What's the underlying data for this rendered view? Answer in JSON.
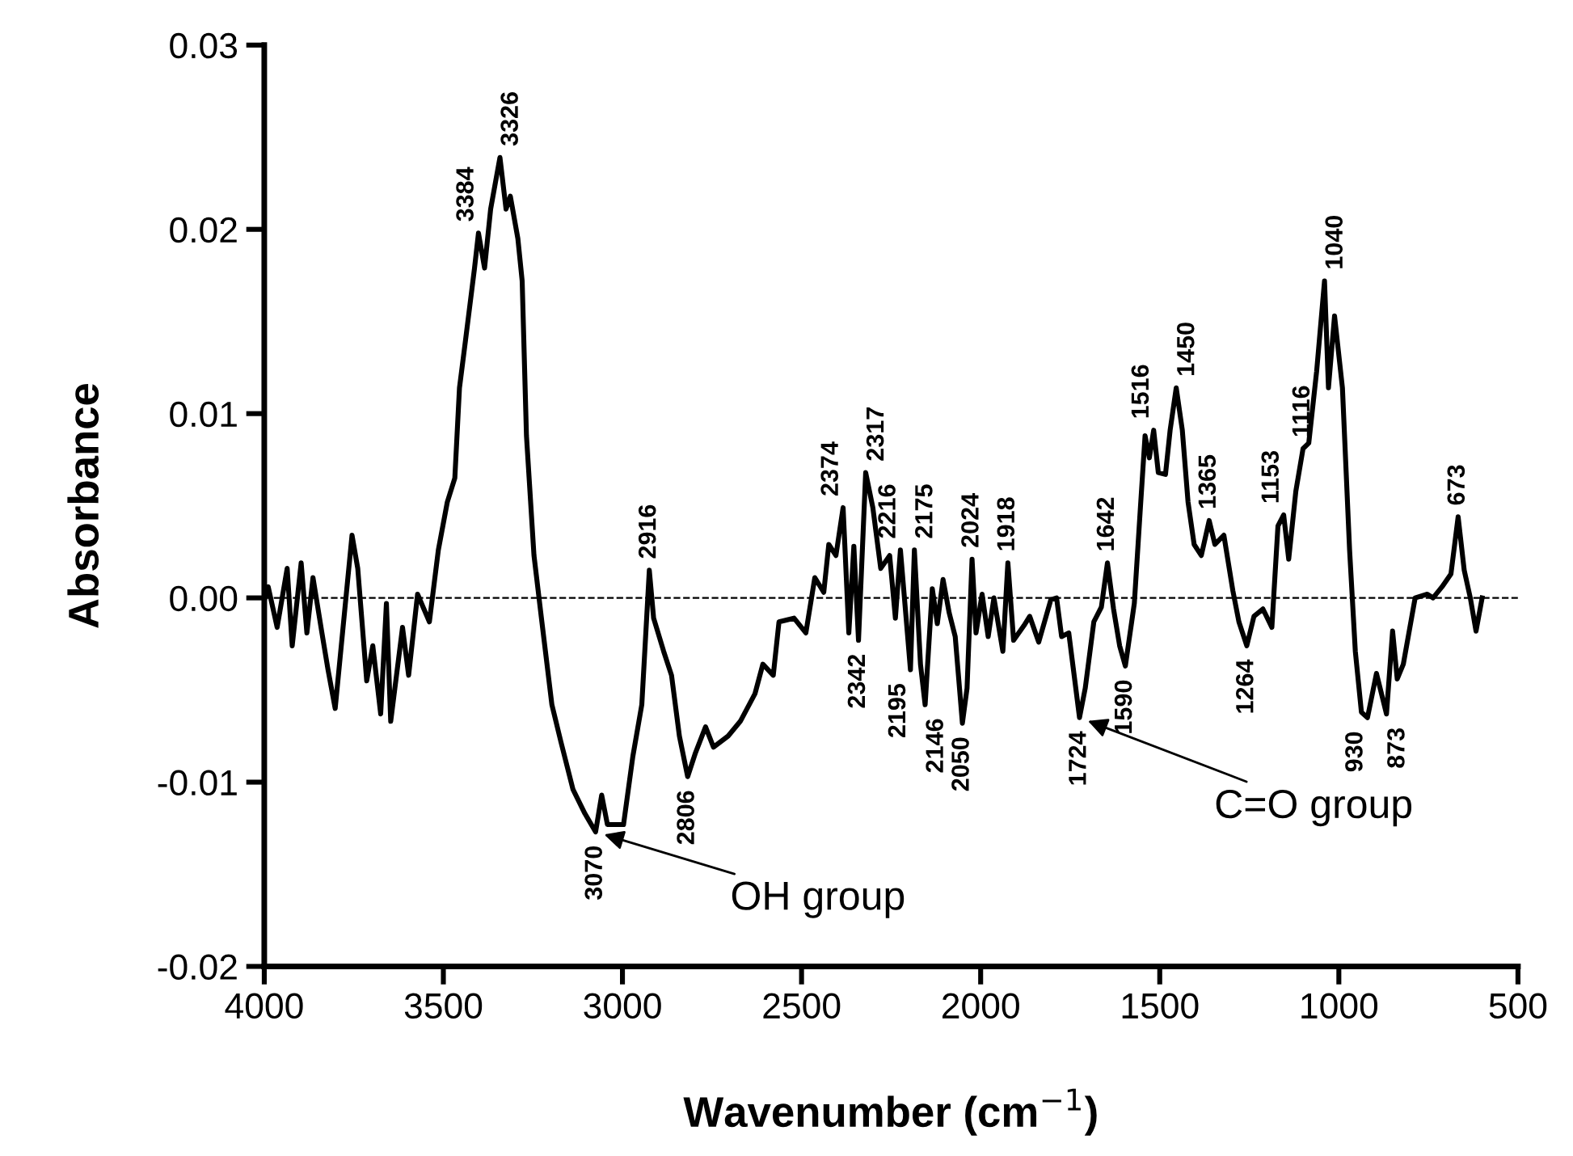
{
  "chart_data": {
    "type": "line",
    "xlabel": "Wavenumber (cm$^{−1}$)",
    "ylabel": "Absorbance",
    "xlim": [
      4000,
      500
    ],
    "xticks": [
      4000,
      3500,
      3000,
      2500,
      2000,
      1500,
      1000,
      500
    ],
    "ylim": [
      -0.02,
      0.03
    ],
    "yticks": [
      {
        "value": -0.02,
        "label": "-0.02"
      },
      {
        "value": -0.01,
        "label": "-0.01"
      },
      {
        "value": 0,
        "label": "0.00"
      },
      {
        "value": 0.01,
        "label": "0.01"
      },
      {
        "value": 0.02,
        "label": "0.02"
      },
      {
        "value": 0.03,
        "label": "0.03"
      }
    ],
    "grid": false,
    "legend": false,
    "marker": "none",
    "line_style": "solid",
    "ref_lines": [
      {
        "axis": "y",
        "value": 0,
        "label": null,
        "color": "#000000",
        "line_style": "dashed"
      }
    ],
    "series": [
      {
        "color": "#000000",
        "x": [
          3998,
          3989,
          3964,
          3936,
          3922,
          3897,
          3881,
          3864,
          3839,
          3822,
          3802,
          3780,
          3755,
          3739,
          3714,
          3697,
          3675,
          3659,
          3647,
          3614,
          3597,
          3572,
          3539,
          3514,
          3489,
          3468,
          3455,
          3438,
          3413,
          3402,
          3385,
          3368,
          3342,
          3325,
          3313,
          3292,
          3280,
          3268,
          3247,
          3225,
          3197,
          3172,
          3138,
          3105,
          3075,
          3058,
          3042,
          2997,
          2971,
          2946,
          2925,
          2913,
          2885,
          2863,
          2841,
          2818,
          2796,
          2768,
          2746,
          2705,
          2671,
          2630,
          2608,
          2579,
          2563,
          2521,
          2488,
          2463,
          2438,
          2424,
          2404,
          2384,
          2368,
          2354,
          2341,
          2321,
          2301,
          2279,
          2254,
          2238,
          2224,
          2196,
          2185,
          2168,
          2155,
          2135,
          2121,
          2105,
          2088,
          2071,
          2051,
          2038,
          2024,
          2013,
          1996,
          1979,
          1963,
          1938,
          1924,
          1908,
          1879,
          1863,
          1838,
          1804,
          1788,
          1774,
          1754,
          1724,
          1708,
          1684,
          1663,
          1646,
          1629,
          1612,
          1596,
          1571,
          1554,
          1541,
          1529,
          1517,
          1504,
          1484,
          1471,
          1454,
          1437,
          1421,
          1404,
          1384,
          1362,
          1346,
          1321,
          1296,
          1279,
          1257,
          1237,
          1212,
          1187,
          1170,
          1154,
          1140,
          1120,
          1100,
          1084,
          1062,
          1040,
          1029,
          1012,
          990,
          970,
          954,
          937,
          920,
          895,
          867,
          850,
          837,
          820,
          787,
          753,
          737,
          712,
          687,
          667,
          650,
          633,
          617,
          600
        ],
        "values": [
          0,
          0.0006,
          -0.0016,
          0.0016,
          -0.0026,
          0.0019,
          -0.0019,
          0.0011,
          -0.0019,
          -0.0039,
          -0.006,
          -0.0016,
          0.0034,
          0.0016,
          -0.0045,
          -0.0026,
          -0.0063,
          -0.0003,
          -0.0067,
          -0.0016,
          -0.0042,
          0.0002,
          -0.0013,
          0.0026,
          0.0052,
          0.0065,
          0.0114,
          0.014,
          0.0179,
          0.0198,
          0.0179,
          0.0211,
          0.0239,
          0.0211,
          0.0218,
          0.0195,
          0.0172,
          0.0088,
          0.0023,
          -0.0013,
          -0.0058,
          -0.0078,
          -0.0104,
          -0.0117,
          -0.0127,
          -0.0107,
          -0.0123,
          -0.0123,
          -0.0086,
          -0.0058,
          0.0015,
          -0.0011,
          -0.0029,
          -0.0042,
          -0.0075,
          -0.0097,
          -0.0084,
          -0.007,
          -0.0081,
          -0.0075,
          -0.0067,
          -0.0052,
          -0.0036,
          -0.0042,
          -0.0013,
          -0.0011,
          -0.0019,
          0.0011,
          0.0003,
          0.0029,
          0.0023,
          0.0049,
          -0.0019,
          0.0028,
          -0.0023,
          0.0068,
          0.0049,
          0.0016,
          0.0023,
          -0.0011,
          0.0026,
          -0.0039,
          0.0026,
          -0.0036,
          -0.0058,
          0.0005,
          -0.0014,
          0.001,
          -0.0008,
          -0.0021,
          -0.0068,
          -0.0049,
          0.0021,
          -0.0019,
          0.0002,
          -0.0021,
          0,
          -0.0029,
          0.0019,
          -0.0023,
          -0.0015,
          -0.001,
          -0.0024,
          -0.0001,
          0,
          -0.0021,
          -0.0019,
          -0.0065,
          -0.0049,
          -0.0013,
          -0.0005,
          0.0019,
          -0.0006,
          -0.0026,
          -0.0037,
          -0.0003,
          0.0049,
          0.0088,
          0.0076,
          0.0091,
          0.0068,
          0.0067,
          0.0091,
          0.0114,
          0.0091,
          0.0052,
          0.0029,
          0.0023,
          0.0042,
          0.0029,
          0.0034,
          0.0004,
          -0.0013,
          -0.0026,
          -0.001,
          -0.0006,
          -0.0016,
          0.0039,
          0.0045,
          0.0021,
          0.0058,
          0.0081,
          0.0084,
          0.0123,
          0.0172,
          0.0114,
          0.0153,
          0.0114,
          0.0026,
          -0.0029,
          -0.0062,
          -0.0065,
          -0.0041,
          -0.0063,
          -0.0018,
          -0.0044,
          -0.0036,
          0,
          0.0002,
          0,
          0.0006,
          0.0013,
          0.0044,
          0.0015,
          0,
          -0.0018,
          0
        ]
      }
    ],
    "annotations": [
      {
        "text": "3384",
        "x": 3402,
        "y": 0.0198
      },
      {
        "text": "3326",
        "x": 3342,
        "y": 0.0239
      },
      {
        "text": "2916",
        "x": 2925,
        "y": 0.0015
      },
      {
        "text": "2374",
        "x": 2384,
        "y": 0.0049
      },
      {
        "text": "2317",
        "x": 2321,
        "y": 0.0068
      },
      {
        "text": "2216",
        "x": 2224,
        "y": 0.0026
      },
      {
        "text": "2175",
        "x": 2185,
        "y": 0.0026
      },
      {
        "text": "2024",
        "x": 2024,
        "y": 0.0021
      },
      {
        "text": "1918",
        "x": 1924,
        "y": 0.0019
      },
      {
        "text": "1642",
        "x": 1646,
        "y": 0.0019
      },
      {
        "text": "1516",
        "x": 1517,
        "y": 0.0091
      },
      {
        "text": "1450",
        "x": 1454,
        "y": 0.0114
      },
      {
        "text": "1365",
        "x": 1362,
        "y": 0.0042
      },
      {
        "text": "1153",
        "x": 1154,
        "y": 0.0045
      },
      {
        "text": "1116",
        "x": 1100,
        "y": 0.0081
      },
      {
        "text": "1040",
        "x": 1040,
        "y": 0.0172
      },
      {
        "text": "673",
        "x": 667,
        "y": 0.0044
      },
      {
        "text": "3070",
        "x": 3075,
        "y": -0.0127
      },
      {
        "text": "2806",
        "x": 2818,
        "y": -0.0097
      },
      {
        "text": "2342",
        "x": 2341,
        "y": -0.0023
      },
      {
        "text": "2195",
        "x": 2196,
        "y": -0.0039
      },
      {
        "text": "2146",
        "x": 2155,
        "y": -0.0058
      },
      {
        "text": "2050",
        "x": 2051,
        "y": -0.0068
      },
      {
        "text": "1724",
        "x": 1724,
        "y": -0.0065
      },
      {
        "text": "1590",
        "x": 1596,
        "y": -0.0037
      },
      {
        "text": "1264",
        "x": 1257,
        "y": -0.0026
      },
      {
        "text": "930",
        "x": 920,
        "y": -0.0065
      },
      {
        "text": "873",
        "x": 867,
        "y": -0.0063
      },
      {
        "text": "OH group",
        "x": 3075,
        "y": -0.0127
      },
      {
        "text": "C=O group",
        "x": 1724,
        "y": -0.0065
      }
    ]
  }
}
